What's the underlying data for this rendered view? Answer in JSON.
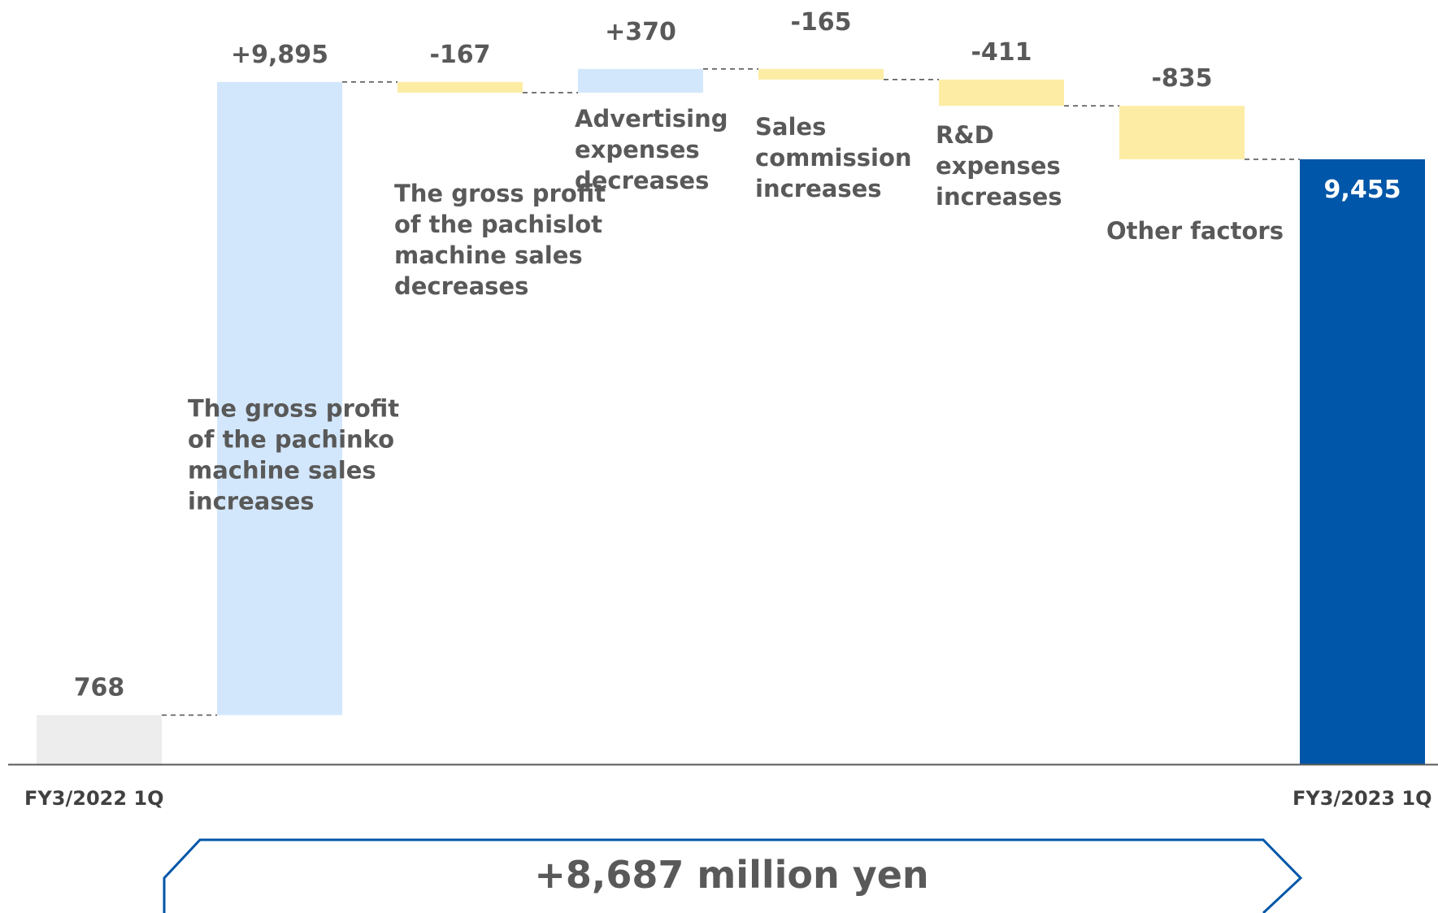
{
  "chart_data": {
    "type": "waterfall",
    "title": "",
    "xlabel": "",
    "ylabel": "",
    "ylim": [
      0,
      10800
    ],
    "grid": false,
    "legend": "none",
    "categories": [
      "FY3/2022 1Q",
      "The gross profit of the pachinko machine sales increases",
      "The gross profit of the pachislot machine sales decreases",
      "Advertising expenses decreases",
      "Sales commission increases",
      "R&D expenses increases",
      "Other factors",
      "FY3/2023 1Q"
    ],
    "steps": [
      {
        "kind": "total",
        "value": 768,
        "label": "768",
        "axis_label": "FY3/2022 1Q",
        "color": "#ededed"
      },
      {
        "kind": "delta",
        "value": 9895,
        "label": "+9,895",
        "desc": [
          "The gross profit",
          "of the pachinko",
          "machine sales",
          "increases"
        ],
        "color": "#d3e7fc"
      },
      {
        "kind": "delta",
        "value": -167,
        "label": "-167",
        "desc": [
          "The gross profit",
          "of the pachislot",
          "machine sales",
          "decreases"
        ],
        "color": "#fdeca4"
      },
      {
        "kind": "delta",
        "value": 370,
        "label": "+370",
        "desc": [
          "Advertising",
          "expenses",
          "decreases"
        ],
        "color": "#d3e7fc"
      },
      {
        "kind": "delta",
        "value": -165,
        "label": "-165",
        "desc": [
          "Sales",
          "commission",
          "increases"
        ],
        "color": "#fdeca4"
      },
      {
        "kind": "delta",
        "value": -411,
        "label": "-411",
        "desc": [
          "R&D",
          "expenses",
          "increases"
        ],
        "color": "#fdeca4"
      },
      {
        "kind": "delta",
        "value": -835,
        "label": "-835",
        "desc": [
          "Other factors"
        ],
        "color": "#fdeca4"
      },
      {
        "kind": "total",
        "value": 9455,
        "label": "9,455",
        "axis_label": "FY3/2023 1Q",
        "color": "#0056a8"
      }
    ],
    "summary": "+8,687 million yen",
    "summary_color": "#0056a8"
  }
}
